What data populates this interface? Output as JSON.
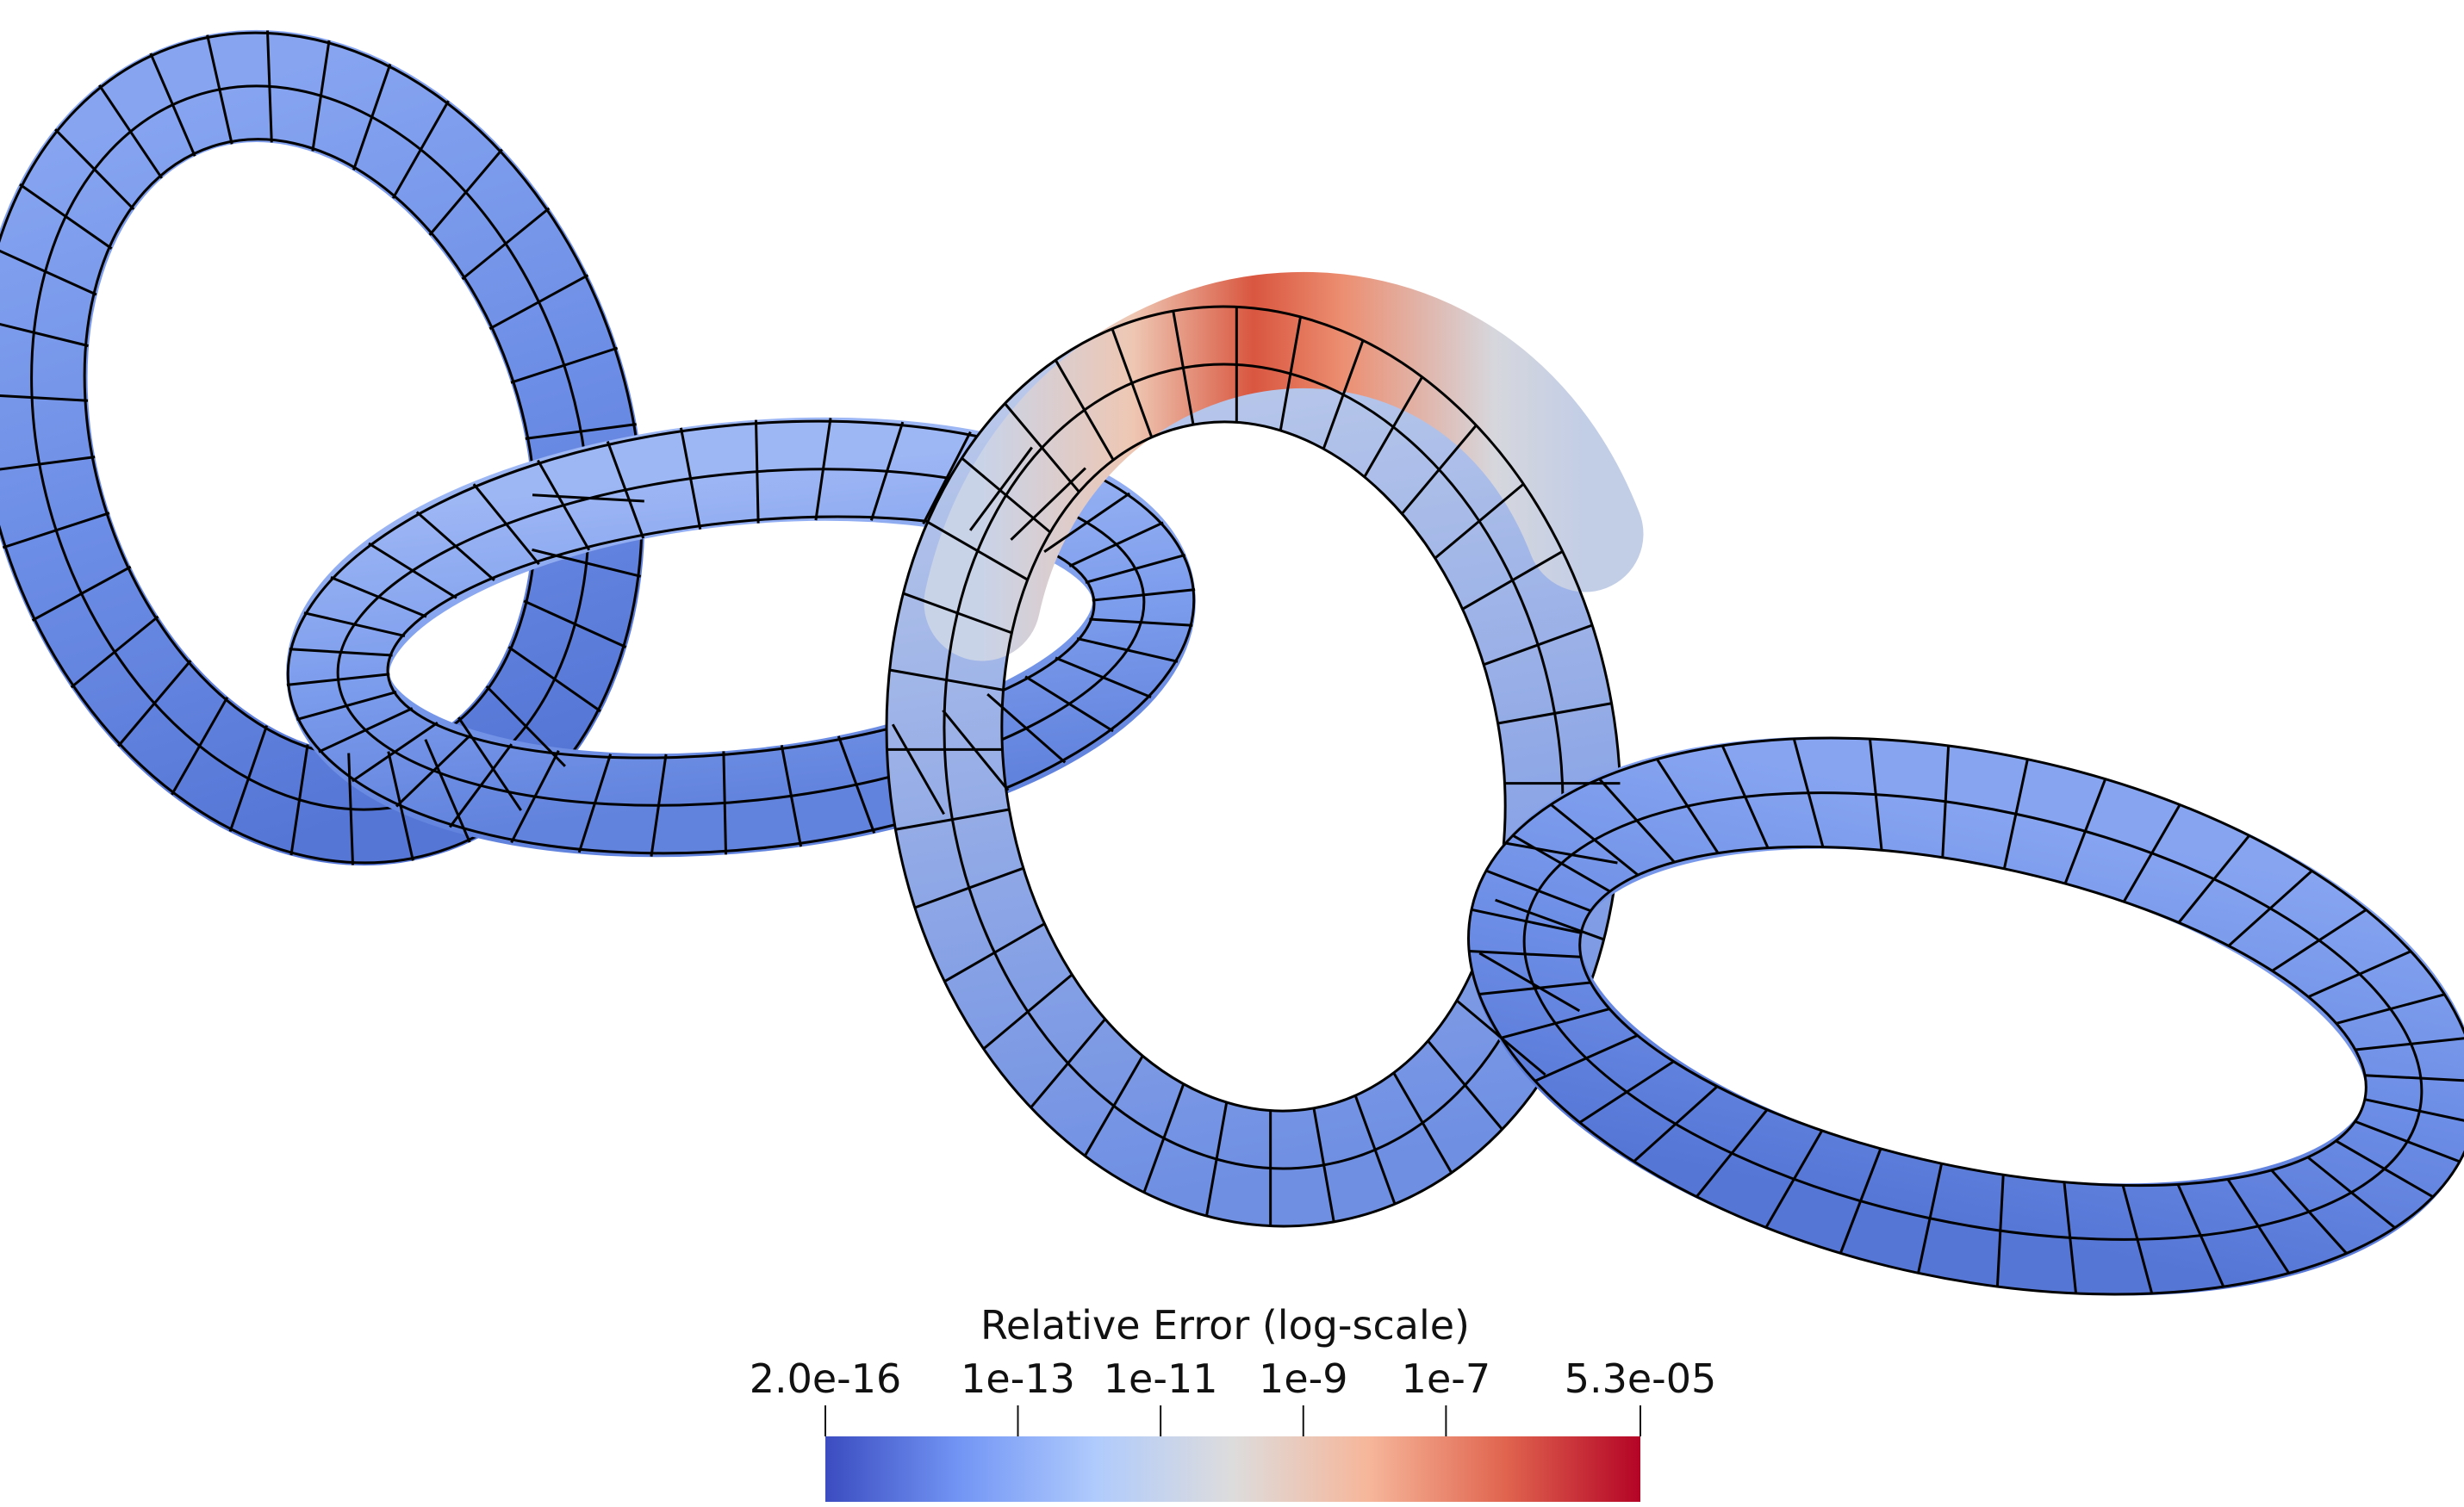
{
  "colorbar": {
    "title": "Relative Error (log-scale)",
    "scale": "log",
    "min_label": "2.0e-16",
    "max_label": "5.3e-05",
    "ticks": [
      {
        "label": "2.0e-16",
        "value": 2e-16
      },
      {
        "label": "1e-13",
        "value": 1e-13
      },
      {
        "label": "1e-11",
        "value": 1e-11
      },
      {
        "label": "1e-9",
        "value": 1e-09
      },
      {
        "label": "1e-7",
        "value": 1e-07
      },
      {
        "label": "5.3e-05",
        "value": 5.3e-05
      }
    ],
    "colormap": [
      "#3b4cc0",
      "#7396f5",
      "#b0cbfc",
      "#dddcdc",
      "#f6b69a",
      "#e0654f",
      "#b40426"
    ]
  },
  "scene": {
    "description_tags": [
      "torus-chain",
      "mesh-grid"
    ],
    "rings": [
      {
        "id": "ring-1",
        "color": "#6f8fe6"
      },
      {
        "id": "ring-2",
        "color": "#7698ea"
      },
      {
        "id": "ring-3",
        "color": "#c8d2e6",
        "hot_color": "#e26a52"
      },
      {
        "id": "ring-4",
        "color": "#7192e8"
      }
    ],
    "mesh_color": "#000000"
  }
}
